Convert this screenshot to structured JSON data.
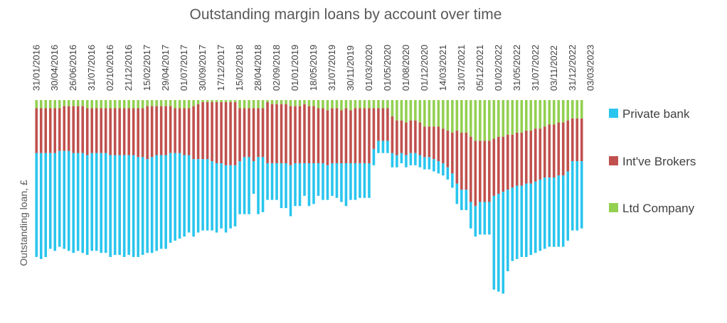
{
  "chart_data": {
    "type": "bar",
    "stacked": true,
    "orientation": "downward",
    "title": "Outstanding margin loans by account over time",
    "ylabel": "Outstanding loan, £",
    "xlabel": "",
    "legend_position": "right",
    "tick_labels": [
      "31/01/2016",
      "30/04/2016",
      "26/06/2016",
      "31/07/2016",
      "02/10/2016",
      "21/12/2016",
      "15/02/2017",
      "29/04/2017",
      "01/07/2017",
      "30/09/2017",
      "17/12/2017",
      "15/02/2018",
      "28/04/2018",
      "02/09/2018",
      "01/01/2019",
      "18/05/2019",
      "31/07/2019",
      "30/11/2019",
      "01/03/2020",
      "01/05/2020",
      "01/08/2020",
      "01/12/2020",
      "14/03/2021",
      "31/07/2021",
      "05/12/2021",
      "01/02/2022",
      "31/05/2022",
      "31/07/2022",
      "03/11/2022",
      "31/12/2022",
      "03/03/2023"
    ],
    "tick_every": 4,
    "ylim": [
      0,
      100
    ],
    "series": [
      {
        "name": "Ltd Company",
        "color": "#92d050",
        "values": [
          4,
          4,
          4,
          4,
          4,
          4,
          3,
          3,
          3,
          3,
          3,
          4,
          4,
          4,
          4,
          4,
          4,
          4,
          4,
          4,
          4,
          4,
          4,
          4,
          3,
          3,
          3,
          3,
          3,
          3,
          4,
          4,
          4,
          4,
          3,
          2,
          1,
          1,
          1,
          1,
          1,
          1,
          1,
          1,
          4,
          4,
          4,
          4,
          4,
          4,
          1,
          2,
          2,
          2,
          2,
          3,
          3,
          3,
          2,
          3,
          3,
          4,
          4,
          5,
          4,
          4,
          5,
          4,
          5,
          4,
          4,
          4,
          4,
          4,
          4,
          4,
          4,
          8,
          10,
          10,
          11,
          10,
          10,
          11,
          13,
          13,
          13,
          13,
          14,
          15,
          16,
          15,
          16,
          16,
          18,
          20,
          20,
          20,
          20,
          19,
          18,
          18,
          17,
          17,
          16,
          16,
          15,
          15,
          14,
          14,
          13,
          12,
          12,
          11,
          11,
          10,
          9,
          9,
          9
        ]
      },
      {
        "name": "Int've Brokers",
        "color": "#c0504d",
        "values": [
          22,
          22,
          22,
          22,
          22,
          21,
          22,
          22,
          23,
          23,
          23,
          23,
          22,
          22,
          22,
          22,
          23,
          23,
          23,
          23,
          23,
          23,
          24,
          24,
          26,
          25,
          24,
          24,
          24,
          23,
          22,
          22,
          23,
          23,
          26,
          27,
          28,
          28,
          29,
          30,
          30,
          31,
          31,
          31,
          26,
          24,
          24,
          26,
          24,
          24,
          30,
          29,
          29,
          29,
          29,
          29,
          28,
          28,
          29,
          28,
          28,
          27,
          27,
          27,
          27,
          27,
          26,
          27,
          26,
          27,
          27,
          27,
          27,
          20,
          16,
          16,
          16,
          18,
          17,
          16,
          16,
          16,
          16,
          16,
          15,
          15,
          16,
          17,
          17,
          18,
          20,
          26,
          28,
          28,
          32,
          32,
          30,
          30,
          30,
          28,
          28,
          27,
          27,
          26,
          26,
          26,
          26,
          26,
          26,
          25,
          25,
          26,
          26,
          26,
          26,
          25,
          21,
          21,
          21
        ]
      },
      {
        "name": "Private bank",
        "color": "#29c5ee",
        "values": [
          51,
          52,
          51,
          47,
          48,
          47,
          48,
          49,
          49,
          48,
          49,
          49,
          48,
          48,
          49,
          49,
          50,
          49,
          49,
          50,
          49,
          50,
          49,
          48,
          46,
          47,
          47,
          46,
          46,
          44,
          43,
          42,
          40,
          38,
          38,
          36,
          35,
          35,
          34,
          34,
          32,
          33,
          31,
          30,
          26,
          28,
          28,
          16,
          28,
          27,
          18,
          18,
          18,
          22,
          22,
          25,
          21,
          21,
          16,
          21,
          20,
          16,
          18,
          17,
          16,
          17,
          19,
          21,
          18,
          18,
          17,
          17,
          17,
          8,
          6,
          6,
          6,
          7,
          6,
          5,
          6,
          6,
          6,
          6,
          6,
          6,
          6,
          6,
          6,
          6,
          7,
          10,
          10,
          10,
          13,
          15,
          16,
          16,
          16,
          46,
          48,
          50,
          40,
          36,
          36,
          35,
          36,
          35,
          35,
          35,
          35,
          34,
          34,
          35,
          35,
          34,
          34,
          34,
          33
        ]
      }
    ]
  },
  "legend": {
    "items": [
      {
        "label": "Private bank",
        "color": "#29c5ee"
      },
      {
        "label": "Int've Brokers",
        "color": "#c0504d"
      },
      {
        "label": "Ltd Company",
        "color": "#92d050"
      }
    ]
  }
}
